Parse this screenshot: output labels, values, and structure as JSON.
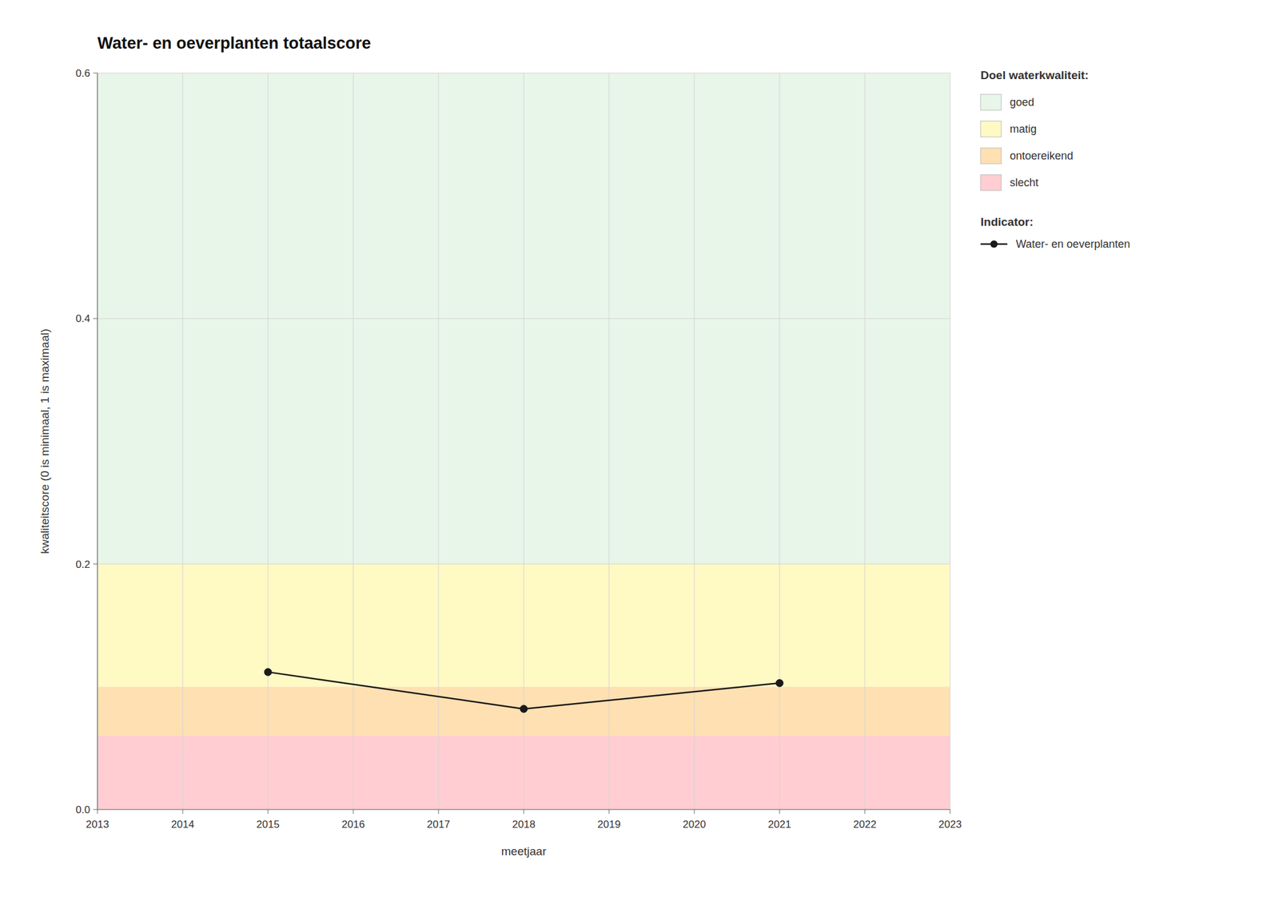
{
  "chart_data": {
    "type": "line",
    "title": "Water- en oeverplanten totaalscore",
    "x_label": "meetjaar",
    "y_label": "kwaliteitscore (0 is minimaal, 1 is maximaal)",
    "x": [
      2015,
      2018,
      2021
    ],
    "series": [
      {
        "name": "Water- en oeverplanten",
        "color": "#1a1a1a",
        "marker": "circle",
        "line_style": "solid",
        "values": [
          0.112,
          0.082,
          0.103
        ]
      }
    ],
    "xlim": [
      2013,
      2023
    ],
    "ylim": [
      0,
      0.6
    ],
    "xticks": [
      2013,
      2014,
      2015,
      2016,
      2017,
      2018,
      2019,
      2020,
      2021,
      2022,
      2023
    ],
    "yticks": [
      {
        "value": 0,
        "label": "0.0"
      },
      0.2,
      0.4,
      0.6
    ],
    "grid": true,
    "legend": "right",
    "bands_title": "Doel waterkwaliteit:",
    "series_legend_title": "Indicator:",
    "bands": [
      {
        "name": "goed",
        "from": 0.2,
        "to": 0.6,
        "color": "#E8F5E9"
      },
      {
        "name": "matig",
        "from": 0.1,
        "to": 0.2,
        "color": "#FFF9C4"
      },
      {
        "name": "ontoereikend",
        "from": 0.06,
        "to": 0.1,
        "color": "#FFE0B2"
      },
      {
        "name": "slecht",
        "from": 0.0,
        "to": 0.06,
        "color": "#FFCDD2"
      }
    ]
  }
}
